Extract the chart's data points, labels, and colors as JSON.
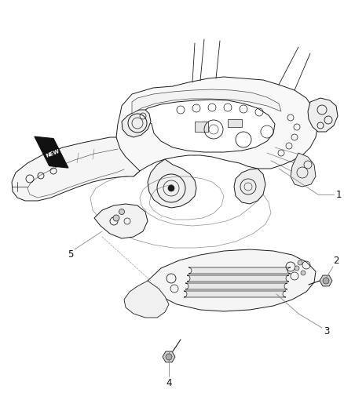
{
  "background_color": "#ffffff",
  "line_color": "#1a1a1a",
  "fig_width": 4.38,
  "fig_height": 5.33,
  "dpi": 100,
  "badge_text": "NEW",
  "callout_color": "#444444",
  "gray_line": "#888888"
}
